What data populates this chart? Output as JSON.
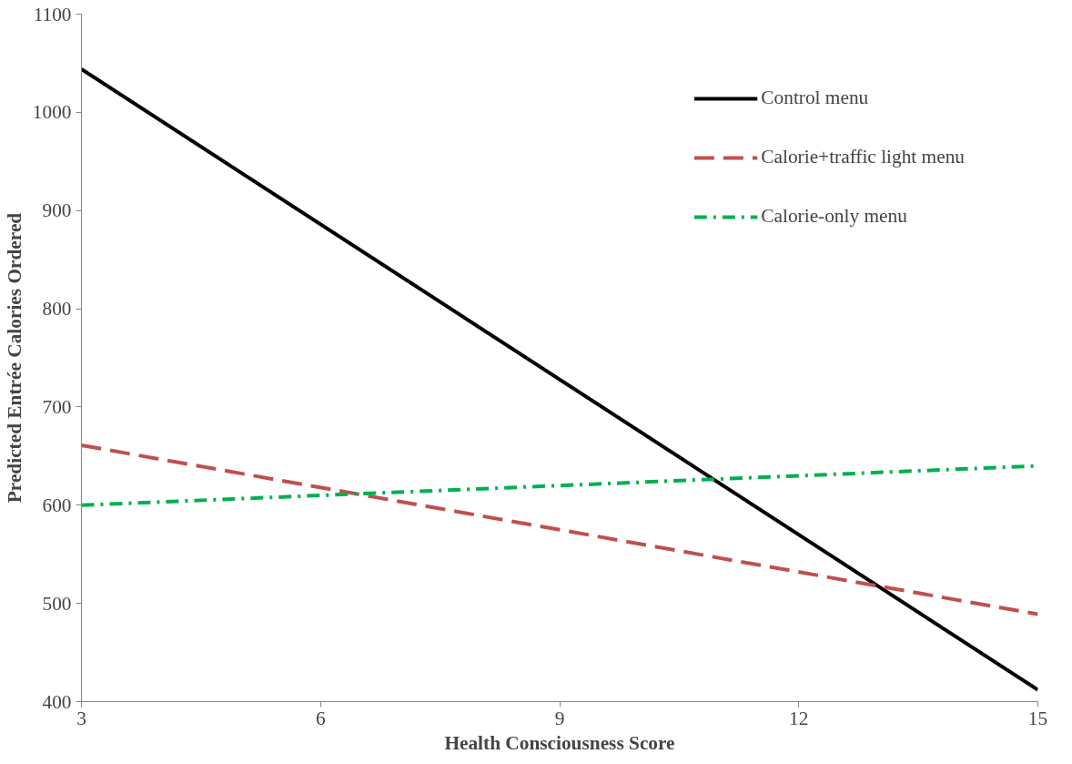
{
  "chart_data": {
    "type": "line",
    "xlabel": "Health Consciousness Score",
    "ylabel": "Predicted Entrée Calories Ordered",
    "x": [
      3,
      15
    ],
    "series": [
      {
        "name": "Control menu",
        "color": "#000000",
        "values": [
          1044,
          412
        ],
        "line_style": "solid"
      },
      {
        "name": "Calorie+traffic light menu",
        "color": "#c0504d",
        "values": [
          661,
          489
        ],
        "line_style": "dashed"
      },
      {
        "name": "Calorie-only menu",
        "color": "#00b050",
        "values": [
          600,
          640
        ],
        "line_style": "dashdot"
      }
    ],
    "xlim": [
      3,
      15
    ],
    "xticks": [
      3,
      6,
      9,
      12,
      15
    ],
    "ylim": [
      400,
      1100
    ],
    "yticks": [
      400,
      500,
      600,
      700,
      800,
      900,
      1000,
      1100
    ],
    "grid": false,
    "legend": "top right"
  }
}
